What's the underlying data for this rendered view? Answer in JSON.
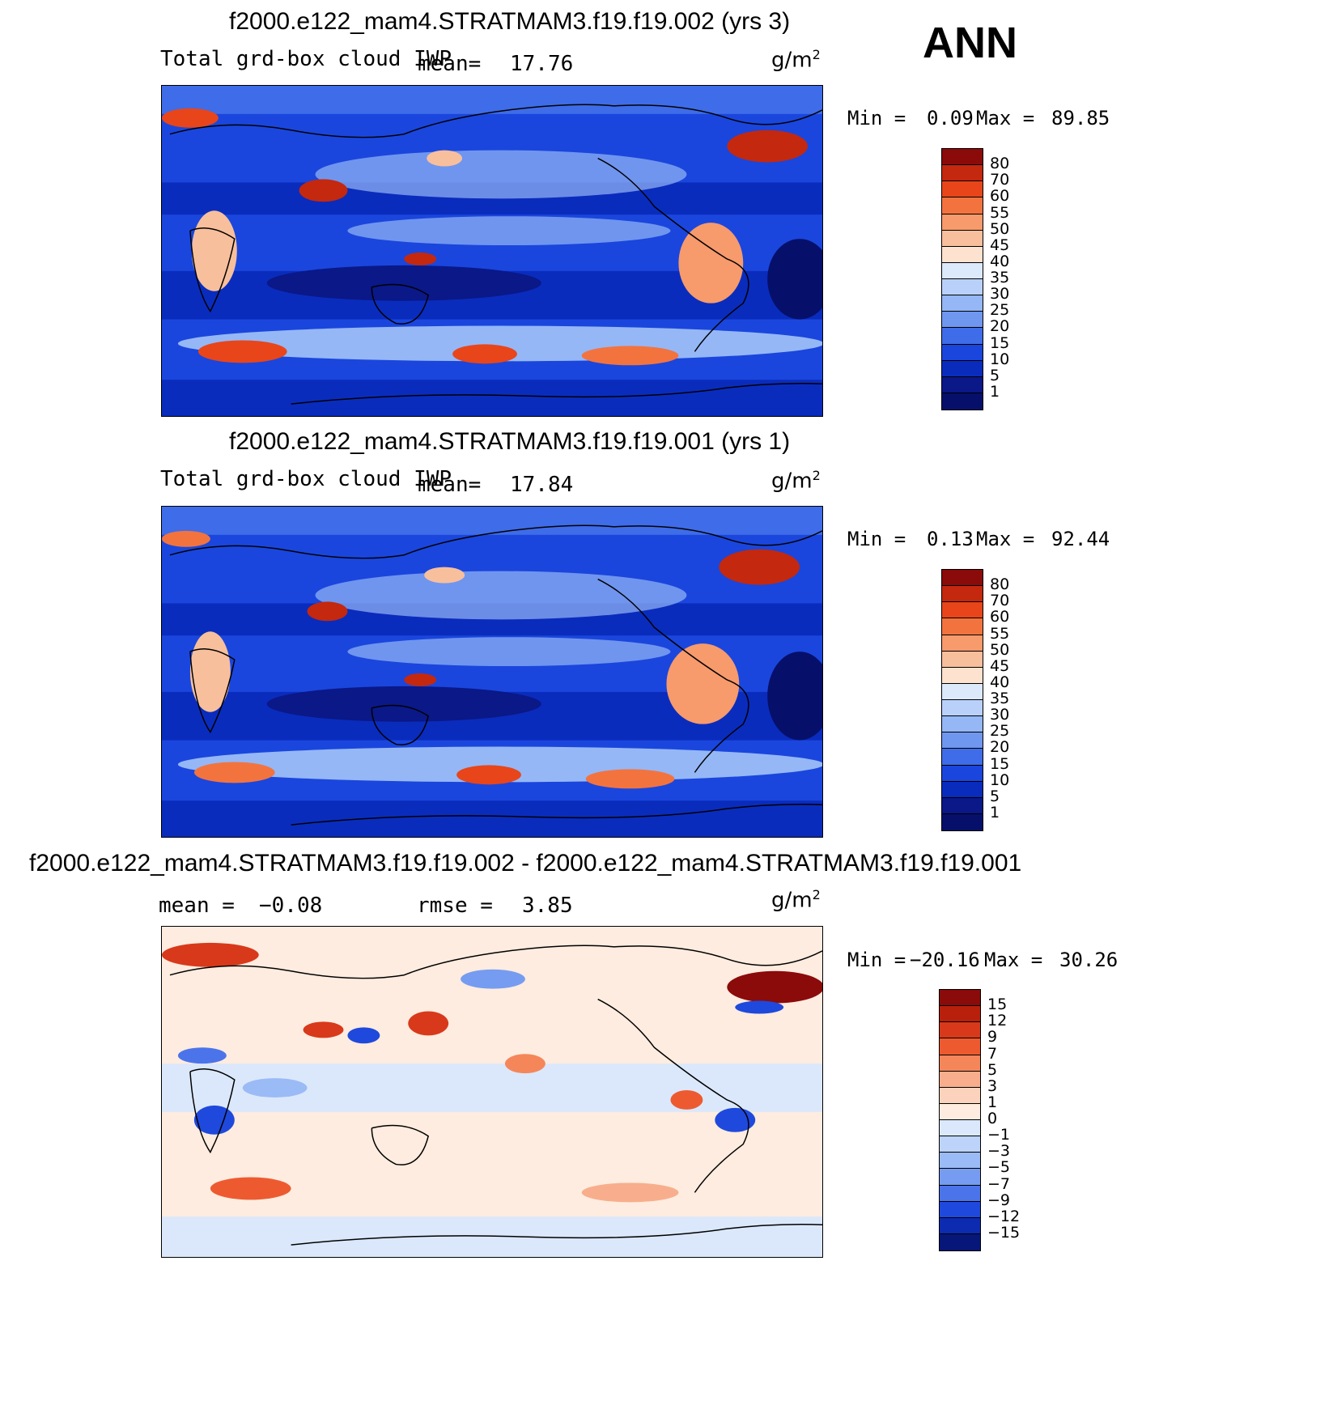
{
  "season": "ANN",
  "panels": [
    {
      "title": "f2000.e122_mam4.STRATMAM3.f19.f19.002 (yrs 3)",
      "variable": "Total grd-box cloud IWP",
      "stat_label": "mean=",
      "stat_value": "17.76",
      "units_base": "g/m",
      "units_exp": "2",
      "min_label": "Min =",
      "min_value": "0.09",
      "max_label": "Max =",
      "max_value": "89.85",
      "colorbar": {
        "levels": [
          "80",
          "70",
          "60",
          "55",
          "50",
          "45",
          "40",
          "35",
          "30",
          "25",
          "20",
          "15",
          "10",
          "5",
          "1"
        ],
        "colors": [
          "#8b0a0a",
          "#c4280e",
          "#e8451a",
          "#f3733f",
          "#f79a6c",
          "#f8bf9c",
          "#fde3cf",
          "#dbe9fb",
          "#b9d1fa",
          "#95b7f6",
          "#6f97f0",
          "#3f6ce8",
          "#1a46dd",
          "#0a2cbd",
          "#0a1888",
          "#06106a"
        ]
      }
    },
    {
      "title": "f2000.e122_mam4.STRATMAM3.f19.f19.001 (yrs 1)",
      "variable": "Total grd-box cloud IWP",
      "stat_label": "mean=",
      "stat_value": "17.84",
      "units_base": "g/m",
      "units_exp": "2",
      "min_label": "Min =",
      "min_value": "0.13",
      "max_label": "Max =",
      "max_value": "92.44",
      "colorbar": {
        "levels": [
          "80",
          "70",
          "60",
          "55",
          "50",
          "45",
          "40",
          "35",
          "30",
          "25",
          "20",
          "15",
          "10",
          "5",
          "1"
        ],
        "colors": [
          "#8b0a0a",
          "#c4280e",
          "#e8451a",
          "#f3733f",
          "#f79a6c",
          "#f8bf9c",
          "#fde3cf",
          "#dbe9fb",
          "#b9d1fa",
          "#95b7f6",
          "#6f97f0",
          "#3f6ce8",
          "#1a46dd",
          "#0a2cbd",
          "#0a1888",
          "#06106a"
        ]
      }
    },
    {
      "title": "f2000.e122_mam4.STRATMAM3.f19.f19.002 - f2000.e122_mam4.STRATMAM3.f19.f19.001",
      "variable": "",
      "stat_label": "mean =",
      "stat_value": "−0.08",
      "rmse_label": "rmse =",
      "rmse_value": "3.85",
      "units_base": "g/m",
      "units_exp": "2",
      "min_label": "Min =",
      "min_value": "−20.16",
      "max_label": "Max =",
      "max_value": "30.26",
      "colorbar": {
        "levels": [
          "15",
          "12",
          "9",
          "7",
          "5",
          "3",
          "1",
          "0",
          "−1",
          "−3",
          "−5",
          "−7",
          "−9",
          "−12",
          "−15"
        ],
        "colors": [
          "#8b0a0a",
          "#b8200c",
          "#d8391a",
          "#ee5a30",
          "#f5865a",
          "#f8ae8c",
          "#fbd3bd",
          "#fdecdf",
          "#dbe8fb",
          "#bdd3fa",
          "#9bbbf6",
          "#769cf1",
          "#4c74ea",
          "#1f49dc",
          "#0c2bb0",
          "#061679"
        ]
      }
    }
  ]
}
